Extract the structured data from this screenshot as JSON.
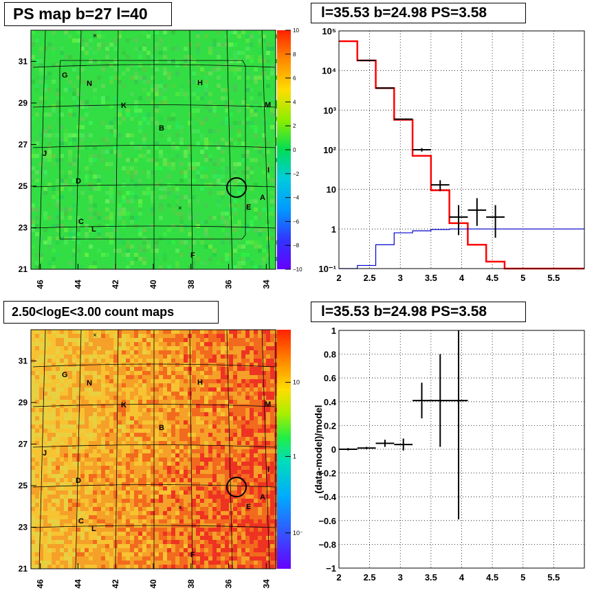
{
  "panels": {
    "ps_map": {
      "title": "PS map b=27 l=40",
      "x_ticks": [
        "46",
        "44",
        "42",
        "40",
        "38",
        "36",
        "34"
      ],
      "y_ticks": [
        "31",
        "29",
        "27",
        "25",
        "23",
        "21"
      ],
      "colorbar": {
        "ticks": [
          "10",
          "8",
          "6",
          "4",
          "2",
          "0",
          "−2",
          "−4",
          "−6",
          "−8",
          "−10"
        ]
      }
    },
    "count_map": {
      "title": "2.50<logE<3.00 count maps",
      "x_ticks": [
        "46",
        "44",
        "42",
        "40",
        "38",
        "36",
        "34"
      ],
      "y_ticks": [
        "31",
        "29",
        "27",
        "25",
        "23",
        "21"
      ],
      "colorbar": {
        "ticks": [
          "10",
          "1",
          "10⁻¹"
        ]
      }
    },
    "source_labels": [
      "G",
      "N",
      "H",
      "K",
      "M",
      "B",
      "J",
      "I",
      "D",
      "A",
      "E",
      "C",
      "L",
      "F"
    ],
    "spectrum_title": "l=35.53 b=24.98 PS=3.58",
    "residual_title": "l=35.53 b=24.98 PS=3.58"
  },
  "chart_data": [
    {
      "type": "heatmap",
      "title": "PS map b=27 l=40",
      "xlim": [
        46.5,
        33.5
      ],
      "ylim": [
        21,
        32.5
      ],
      "zlim": [
        -10,
        10
      ],
      "circle_center": [
        35.53,
        24.98
      ],
      "note_values": "PS significance map, mostly near 0 (green)"
    },
    {
      "type": "heatmap",
      "title": "2.50<logE<3.00 count maps",
      "xlim": [
        46.5,
        33.5
      ],
      "ylim": [
        21,
        32.5
      ],
      "zscale": "log",
      "circle_center": [
        35.53,
        24.98
      ]
    },
    {
      "type": "line",
      "title": "l=35.53 b=24.98 PS=3.58",
      "yscale": "log",
      "xlim": [
        2,
        6
      ],
      "ylim": [
        0.1,
        100000
      ],
      "x_ticks": [
        "2",
        "2.5",
        "3",
        "3.5",
        "4",
        "4.5",
        "5",
        "5.5"
      ],
      "y_ticks": [
        "10⁵",
        "10⁴",
        "10³",
        "10²",
        "10",
        "1",
        "10⁻¹"
      ],
      "series": [
        {
          "role": "model total",
          "color": "#ff0000",
          "style": "step",
          "edges": [
            2.0,
            2.3,
            2.6,
            2.9,
            3.2,
            3.5,
            3.8,
            4.1,
            4.4,
            4.7,
            6.0
          ],
          "values": [
            55000,
            18000,
            3600,
            570,
            70,
            9.5,
            1.4,
            0.4,
            0.15,
            0.1
          ]
        },
        {
          "role": "point source",
          "color": "#0000cc",
          "style": "step",
          "edges": [
            2.0,
            2.3,
            2.6,
            2.9,
            3.2,
            3.5,
            3.8,
            4.1,
            6.0
          ],
          "values": [
            0.1,
            0.12,
            0.4,
            0.8,
            0.9,
            0.97,
            1.0,
            1.0
          ]
        },
        {
          "role": "data",
          "color": "#000000",
          "style": "errorbar",
          "points": [
            {
              "x": 2.45,
              "y": 18000,
              "xerr": 0.15,
              "ylo": 17800,
              "yhi": 18200
            },
            {
              "x": 2.75,
              "y": 3600,
              "xerr": 0.15,
              "ylo": 3550,
              "yhi": 3650
            },
            {
              "x": 3.05,
              "y": 590,
              "xerr": 0.15,
              "ylo": 575,
              "yhi": 605
            },
            {
              "x": 3.35,
              "y": 100,
              "xerr": 0.15,
              "ylo": 90,
              "yhi": 110
            },
            {
              "x": 3.65,
              "y": 13,
              "xerr": 0.15,
              "ylo": 9,
              "yhi": 17
            },
            {
              "x": 3.95,
              "y": 2,
              "xerr": 0.15,
              "ylo": 0.7,
              "yhi": 4
            },
            {
              "x": 4.25,
              "y": 3,
              "xerr": 0.15,
              "ylo": 1.2,
              "yhi": 6
            },
            {
              "x": 4.55,
              "y": 2,
              "xerr": 0.15,
              "ylo": 0.6,
              "yhi": 4
            }
          ]
        }
      ]
    },
    {
      "type": "scatter",
      "title": "l=35.53 b=24.98 PS=3.58",
      "ylabel": "(data-model)/model",
      "xlim": [
        2,
        6
      ],
      "ylim": [
        -1,
        1
      ],
      "x_ticks": [
        "2",
        "2.5",
        "3",
        "3.5",
        "4",
        "4.5",
        "5",
        "5.5"
      ],
      "y_ticks": [
        "1",
        "0.8",
        "0.6",
        "0.4",
        "0.2",
        "0",
        "−0.2",
        "−0.4",
        "−0.6",
        "−0.8",
        "−1"
      ],
      "points": [
        {
          "x": 2.15,
          "y": 0.0,
          "xerr": 0.15,
          "yerr": 0.01
        },
        {
          "x": 2.45,
          "y": 0.01,
          "xerr": 0.15,
          "yerr": 0.01
        },
        {
          "x": 2.75,
          "y": 0.05,
          "xerr": 0.15,
          "yerr": 0.03
        },
        {
          "x": 3.05,
          "y": 0.04,
          "xerr": 0.15,
          "yerr": 0.05
        },
        {
          "x": 3.35,
          "y": 0.41,
          "xerr": 0.15,
          "yerr": 0.15
        },
        {
          "x": 3.65,
          "y": 0.41,
          "xerr": 0.15,
          "yerr": 0.39
        },
        {
          "x": 3.95,
          "y": 0.41,
          "xerr": 0.15,
          "yerr": 1.0
        }
      ]
    }
  ]
}
